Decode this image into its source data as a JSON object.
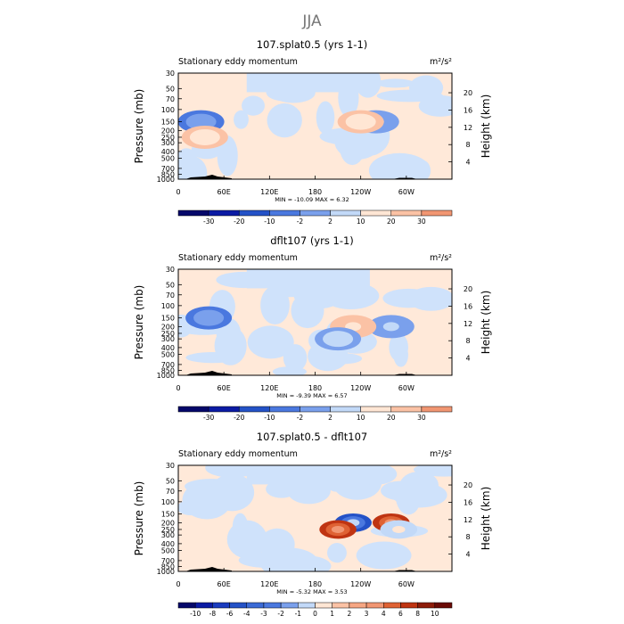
{
  "figure": {
    "title": "JJA",
    "colors": {
      "levels_main": [
        "#05086a",
        "#0b1ba4",
        "#2452c7",
        "#4a78df",
        "#7aa0ec",
        "#c2d9f8",
        "#ffe6d4",
        "#fbc2a5",
        "#f19672",
        "#df6234",
        "#bf3412",
        "#6a0b06"
      ],
      "bg_light": "#ffe9d9",
      "bg_blue": "#cfe2fb"
    }
  },
  "chart_data": [
    {
      "type": "heatmap",
      "title": "107.splat0.5 (yrs 1-1)",
      "left_string": "Stationary eddy momentum",
      "units": "m²/s²",
      "xlabel": "",
      "ylabel": "Pressure (mb)",
      "ylabel_right": "Height (km)",
      "x_ticks": [
        "0",
        "60E",
        "120E",
        "180",
        "120W",
        "60W"
      ],
      "y_ticks": [
        "30",
        "50",
        "70",
        "100",
        "150",
        "200",
        "250",
        "300",
        "400",
        "500",
        "700",
        "850",
        "1000"
      ],
      "y_ticks_right": [
        "20",
        "16",
        "12",
        "8",
        "4"
      ],
      "min_label": "MIN =",
      "min_value": "-10.09",
      "max_label": "MAX =",
      "max_value": "6.32",
      "colorbar_labels": [
        "-30",
        "-20",
        "-10",
        "-2",
        "2",
        "10",
        "20",
        "30"
      ],
      "features": [
        {
          "lon": 30,
          "pres": 150,
          "value": -8
        },
        {
          "lon": 260,
          "pres": 150,
          "value": -4
        },
        {
          "lon": 240,
          "pres": 150,
          "value": 3
        },
        {
          "lon": 35,
          "pres": 250,
          "value": 3
        }
      ]
    },
    {
      "type": "heatmap",
      "title": "dflt107 (yrs 1-1)",
      "left_string": "Stationary eddy momentum",
      "units": "m²/s²",
      "xlabel": "",
      "ylabel": "Pressure (mb)",
      "ylabel_right": "Height (km)",
      "x_ticks": [
        "0",
        "60E",
        "120E",
        "180",
        "120W",
        "60W"
      ],
      "y_ticks": [
        "30",
        "50",
        "70",
        "100",
        "150",
        "200",
        "250",
        "300",
        "400",
        "500",
        "700",
        "850",
        "1000"
      ],
      "y_ticks_right": [
        "20",
        "16",
        "12",
        "8",
        "4"
      ],
      "min_label": "MIN =",
      "min_value": "-9.39",
      "max_label": "MAX =",
      "max_value": "6.57",
      "colorbar_labels": [
        "-30",
        "-20",
        "-10",
        "-2",
        "2",
        "10",
        "20",
        "30"
      ],
      "features": [
        {
          "lon": 40,
          "pres": 150,
          "value": -8
        },
        {
          "lon": 280,
          "pres": 200,
          "value": -6
        },
        {
          "lon": 230,
          "pres": 200,
          "value": 4
        },
        {
          "lon": 210,
          "pres": 300,
          "value": -3
        }
      ]
    },
    {
      "type": "heatmap",
      "title": "107.splat0.5 - dflt107",
      "left_string": "Stationary eddy momentum",
      "units": "m²/s²",
      "xlabel": "",
      "ylabel": "Pressure (mb)",
      "ylabel_right": "Height (km)",
      "x_ticks": [
        "0",
        "60E",
        "120E",
        "180",
        "120W",
        "60W"
      ],
      "y_ticks": [
        "30",
        "50",
        "70",
        "100",
        "150",
        "200",
        "250",
        "300",
        "400",
        "500",
        "700",
        "850",
        "1000"
      ],
      "y_ticks_right": [
        "20",
        "16",
        "12",
        "8",
        "4"
      ],
      "min_label": "MIN =",
      "min_value": "-5.32",
      "max_label": "MAX =",
      "max_value": "3.53",
      "colorbar_labels": [
        "-10",
        "-8",
        "-6",
        "-4",
        "-3",
        "-2",
        "-1",
        "0",
        "1",
        "2",
        "3",
        "4",
        "6",
        "8",
        "10"
      ],
      "features": [
        {
          "lon": 230,
          "pres": 200,
          "value": -5
        },
        {
          "lon": 210,
          "pres": 250,
          "value": 3
        },
        {
          "lon": 280,
          "pres": 200,
          "value": 3
        },
        {
          "lon": 290,
          "pres": 250,
          "value": -2
        }
      ]
    }
  ]
}
